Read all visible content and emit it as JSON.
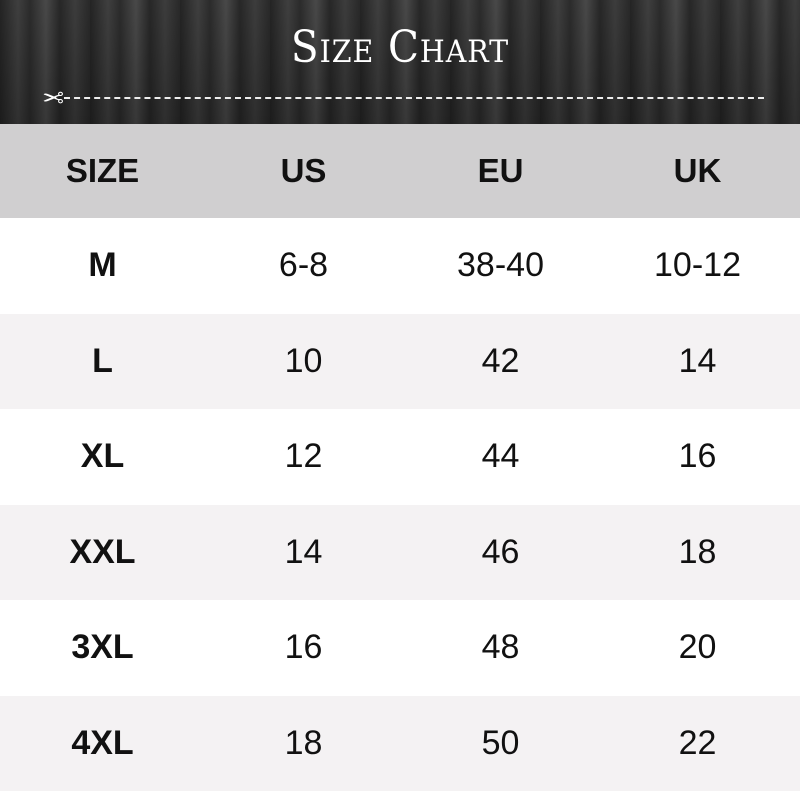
{
  "title": "Size Chart",
  "icon": "scissors-icon",
  "headers": [
    "SIZE",
    "US",
    "EU",
    "UK"
  ],
  "rows": [
    [
      "M",
      "6-8",
      "38-40",
      "10-12"
    ],
    [
      "L",
      "10",
      "42",
      "14"
    ],
    [
      "XL",
      "12",
      "44",
      "16"
    ],
    [
      "XXL",
      "14",
      "46",
      "18"
    ],
    [
      "3XL",
      "16",
      "48",
      "20"
    ],
    [
      "4XL",
      "18",
      "50",
      "22"
    ]
  ]
}
